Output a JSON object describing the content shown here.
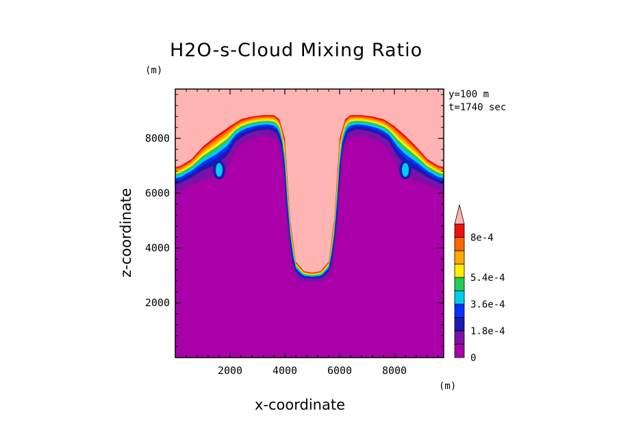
{
  "chart_data": {
    "type": "contour",
    "title": "H2O-s-Cloud Mixing Ratio",
    "xlabel": "x-coordinate",
    "ylabel": "z-coordinate",
    "x_unit": "(m)",
    "y_unit": "(m)",
    "annotations": [
      "y=100 m",
      "t=1740 sec"
    ],
    "xlim": [
      0,
      9800
    ],
    "ylim": [
      0,
      9800
    ],
    "x_ticks": [
      2000,
      4000,
      6000,
      8000
    ],
    "y_ticks": [
      2000,
      4000,
      6000,
      8000
    ],
    "x_tick_labels": [
      "2000",
      "4000",
      "6000",
      "8000"
    ],
    "y_tick_labels": [
      "2000",
      "4000",
      "6000",
      "8000"
    ],
    "colorbar": {
      "levels": [
        0,
        9e-05,
        0.00018,
        0.00027,
        0.00036,
        0.00045,
        0.00054,
        0.00063,
        0.00072,
        0.0008
      ],
      "labels": [
        "0",
        "1.8e-4",
        "3.6e-4",
        "5.4e-4",
        "8e-4"
      ],
      "colors": [
        "#aa00aa",
        "#7d10a8",
        "#1a1ab0",
        "#0033ff",
        "#00ccee",
        "#22cc55",
        "#ffee00",
        "#ffaa00",
        "#ff6600",
        "#ee1010",
        "#ffb4b4"
      ],
      "extend": "max"
    },
    "contours": [
      {
        "level": 9e-05,
        "x": [
          0,
          200,
          600,
          1000,
          1500,
          1900,
          2200,
          2600,
          3000,
          3400,
          3700,
          3900,
          4100,
          4300,
          4600,
          5000,
          5400,
          5700,
          5900,
          6100,
          6300,
          6600,
          7000,
          7400,
          7800,
          8100,
          8400,
          8800,
          9200,
          9600,
          9800
        ],
        "z": [
          6050,
          6100,
          6300,
          6450,
          6600,
          6950,
          7600,
          7900,
          8050,
          8100,
          7950,
          7300,
          4500,
          3100,
          2800,
          2780,
          2800,
          3100,
          4500,
          7300,
          7950,
          8100,
          8050,
          7900,
          7600,
          6950,
          6600,
          6450,
          6300,
          6100,
          6050
        ]
      },
      {
        "level": 0.0008,
        "x": [
          0,
          200,
          600,
          1000,
          1500,
          2000,
          2400,
          2800,
          3200,
          3600,
          3800,
          4000,
          4200,
          4400,
          4700,
          5000,
          5300,
          5600,
          5800,
          6000,
          6200,
          6400,
          6800,
          7200,
          7600,
          8000,
          8400,
          8800,
          9200,
          9600,
          9800
        ],
        "z": [
          6950,
          7000,
          7250,
          7700,
          8100,
          8450,
          8700,
          8800,
          8850,
          8850,
          8700,
          8000,
          5000,
          3500,
          3150,
          3100,
          3150,
          3500,
          5000,
          8000,
          8700,
          8850,
          8850,
          8800,
          8700,
          8450,
          8100,
          7700,
          7250,
          7000,
          6950
        ]
      }
    ],
    "local_maxima": [
      {
        "x": 1600,
        "z": 6800,
        "value": 0.00036
      },
      {
        "x": 8400,
        "z": 6800,
        "value": 0.00036
      }
    ]
  }
}
